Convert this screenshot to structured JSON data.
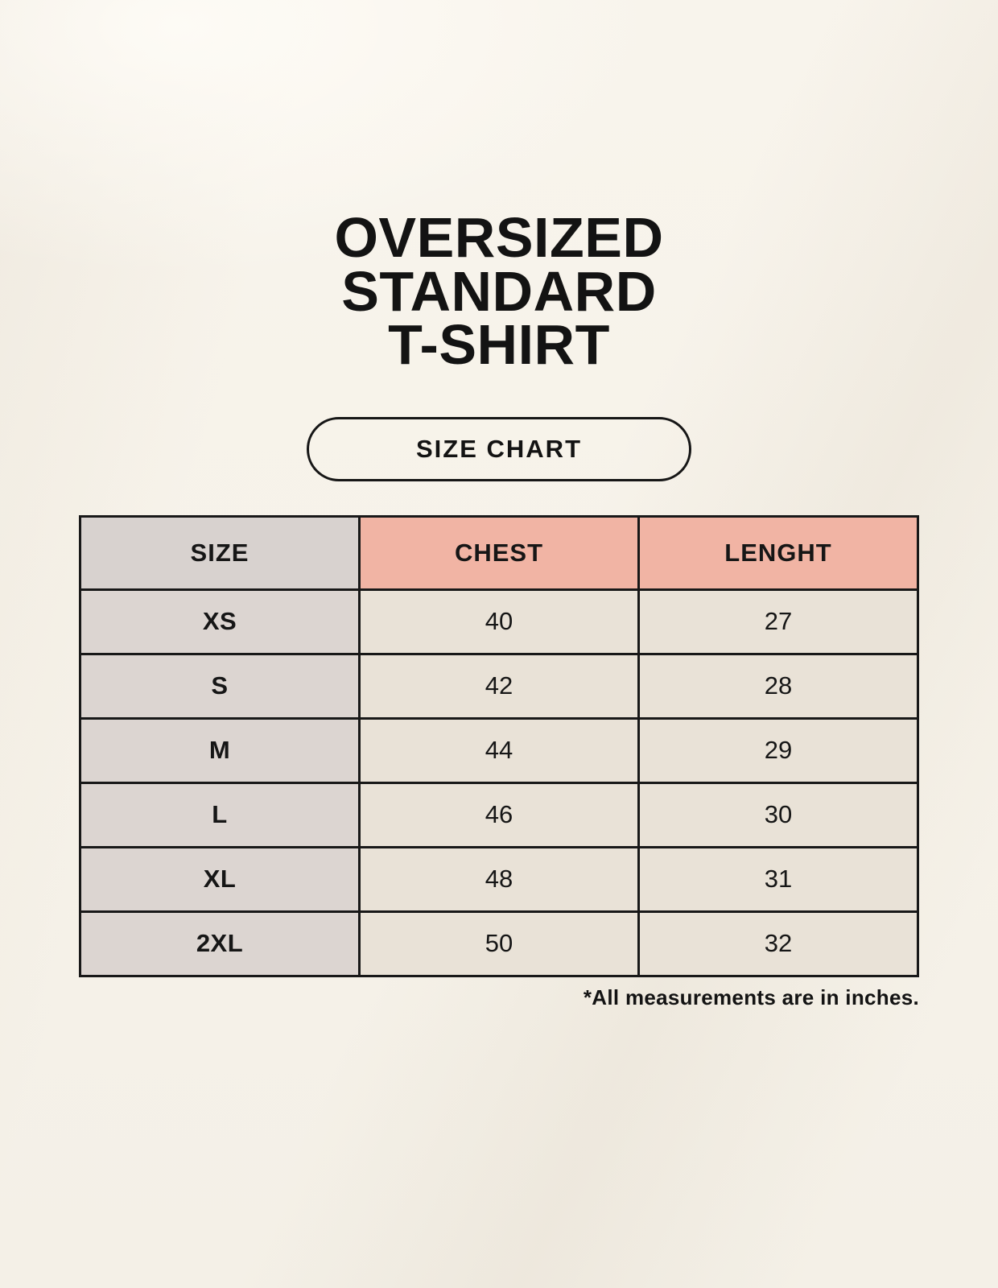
{
  "poster": {
    "title_lines": [
      "OVERSIZED",
      "STANDARD",
      "T-SHIRT"
    ],
    "size_chart_label": "SIZE CHART",
    "footnote": "*All measurements are in inches."
  },
  "table": {
    "columns": [
      "SIZE",
      "CHEST",
      "LENGHT"
    ],
    "rows": [
      {
        "size": "XS",
        "chest": "40",
        "length": "27"
      },
      {
        "size": "S",
        "chest": "42",
        "length": "28"
      },
      {
        "size": "M",
        "chest": "44",
        "length": "29"
      },
      {
        "size": "L",
        "chest": "46",
        "length": "30"
      },
      {
        "size": "XL",
        "chest": "48",
        "length": "31"
      },
      {
        "size": "2XL",
        "chest": "50",
        "length": "32"
      }
    ]
  },
  "colors": {
    "background": "#f7f3ea",
    "table_border": "#181818",
    "header_size_bg": "#d8d2cf",
    "header_measure_bg": "#f1b4a4",
    "row_size_bg": "#dcd5d1",
    "row_data_bg": "#e9e2d7",
    "text": "#161616"
  }
}
